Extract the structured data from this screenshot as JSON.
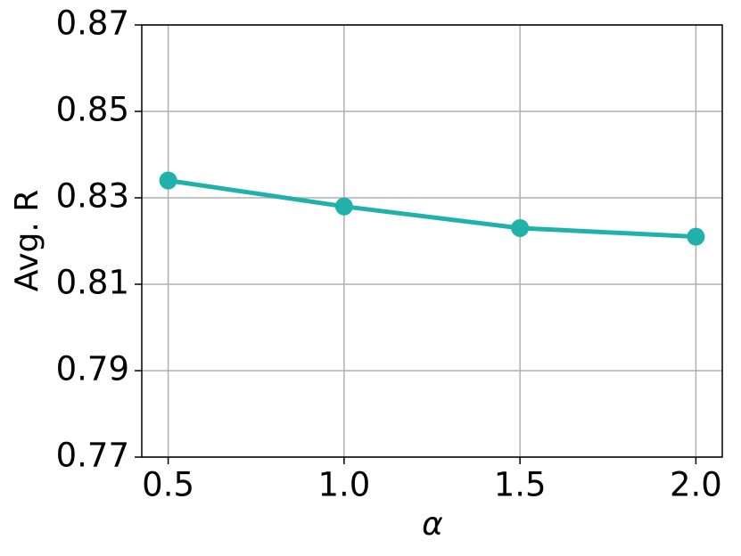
{
  "chart_data": {
    "type": "line",
    "x_label": "α",
    "y_label": "Avg. R",
    "x": [
      0.5,
      1.0,
      1.5,
      2.0
    ],
    "values": [
      0.834,
      0.828,
      0.823,
      0.821
    ],
    "color": "#20b2aa",
    "xlim": [
      0.425,
      2.075
    ],
    "xticks": [
      0.5,
      {
        "value": 1.0,
        "label": "1.0"
      },
      1.5,
      {
        "value": 2.0,
        "label": "2.0"
      }
    ],
    "ylim": [
      0.77,
      0.87
    ],
    "yticks": [
      0.77,
      0.79,
      0.81,
      0.83,
      0.85,
      0.87
    ],
    "grid": true
  }
}
